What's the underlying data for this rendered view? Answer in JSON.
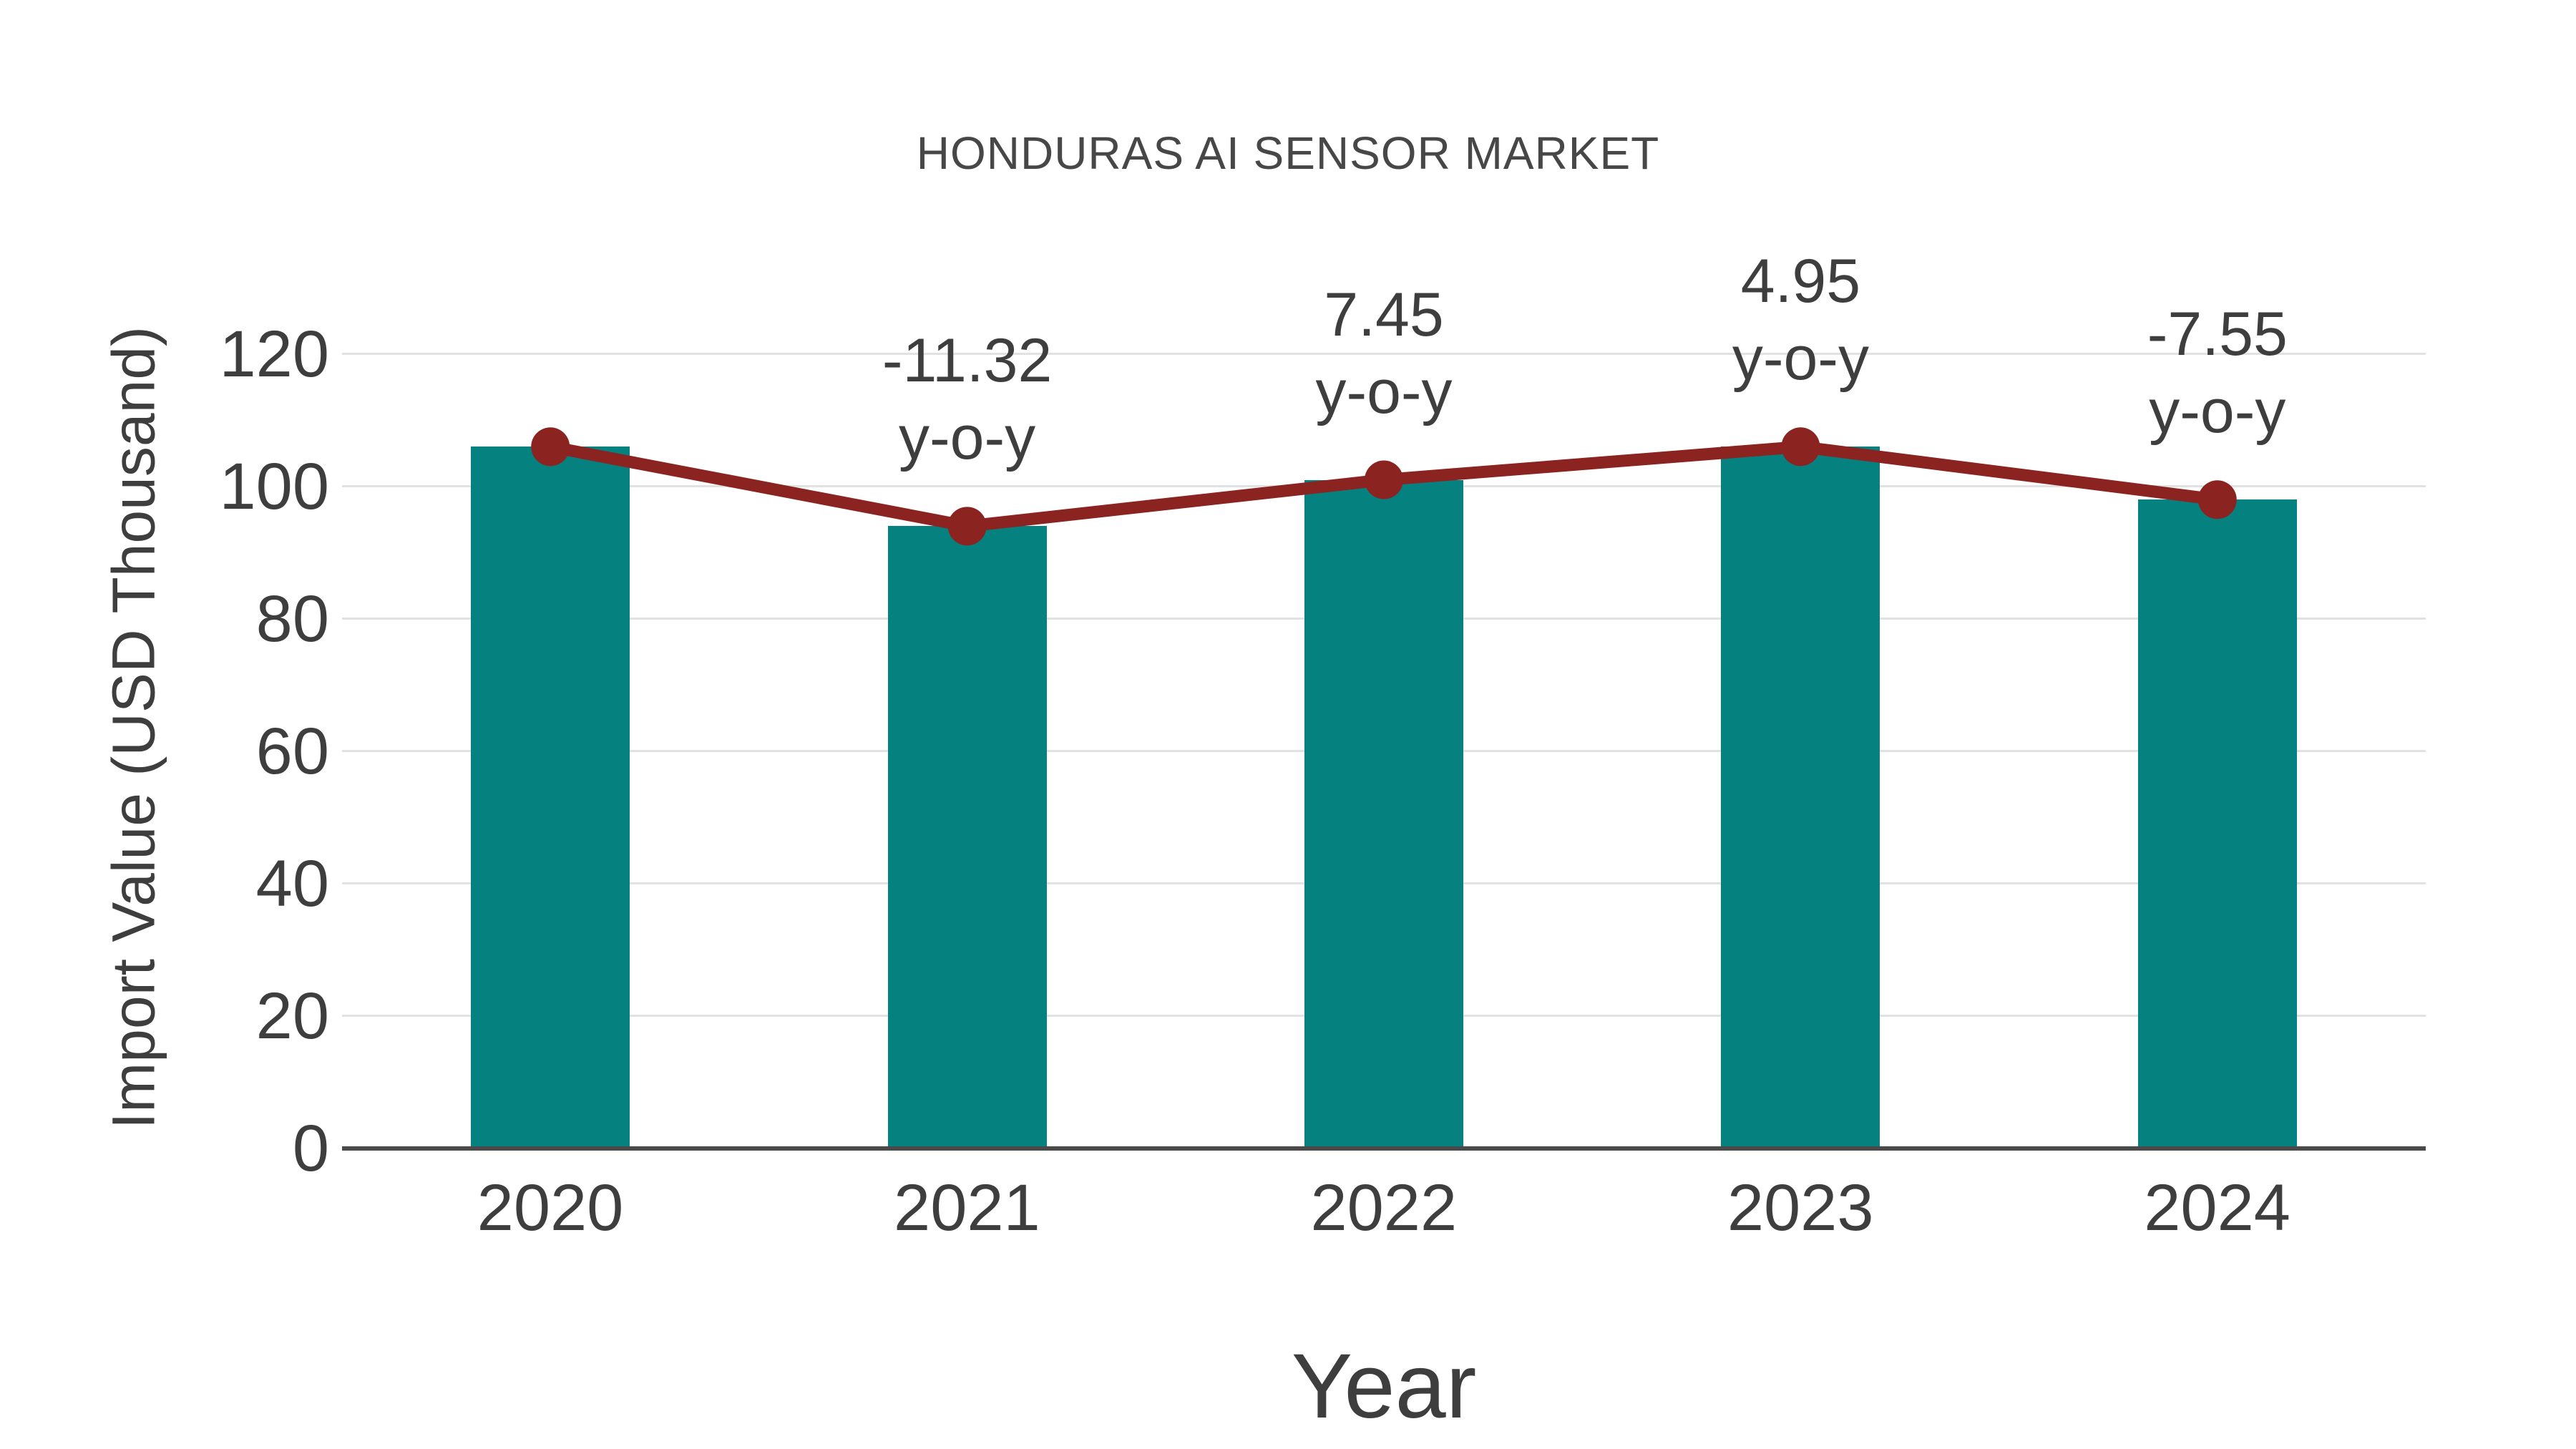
{
  "colors": {
    "bar": "#058280",
    "line": "#8B2421",
    "marker": "#8B2421",
    "grid": "#E2E2E2",
    "axis_line": "#4A4A4A",
    "text": "#3E3E3E",
    "title_text": "#474747",
    "background": "#FFFFFF"
  },
  "chart_data": {
    "type": "bar",
    "title": "HONDURAS AI SENSOR MARKET",
    "xlabel": "Year",
    "ylabel": "Import Value (USD Thousand)",
    "categories": [
      "2020",
      "2021",
      "2022",
      "2023",
      "2024"
    ],
    "series": [
      {
        "type": "bar",
        "values": [
          106,
          94,
          101,
          106,
          98
        ]
      },
      {
        "type": "line",
        "values": [
          106,
          94,
          101,
          106,
          98
        ]
      }
    ],
    "annotations": [
      {
        "category": "2021",
        "lines": [
          "-11.32",
          "y-o-y"
        ]
      },
      {
        "category": "2022",
        "lines": [
          "7.45",
          "y-o-y"
        ]
      },
      {
        "category": "2023",
        "lines": [
          "4.95",
          "y-o-y"
        ]
      },
      {
        "category": "2024",
        "lines": [
          "-7.55",
          "y-o-y"
        ]
      }
    ],
    "yticks": [
      0,
      20,
      40,
      60,
      80,
      100,
      120
    ],
    "ylim": [
      0,
      127
    ],
    "grid": true,
    "legend": false
  }
}
